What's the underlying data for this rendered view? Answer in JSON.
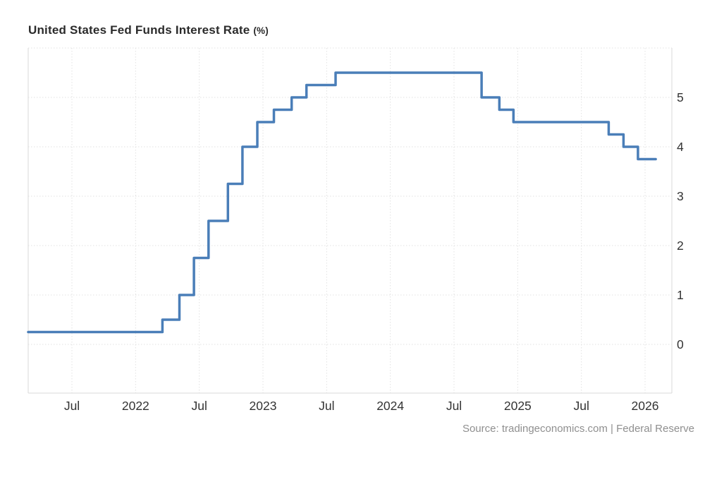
{
  "header": {
    "title_main": "United States Fed Funds Interest Rate",
    "title_unit": "(%)"
  },
  "footer": {
    "source": "Source: tradingeconomics.com | Federal Reserve"
  },
  "colors": {
    "line": "#4a7eb8",
    "grid": "#e2e2e2",
    "axis_border": "#d9d9d9",
    "title_text": "#2b2b2b",
    "tick_label": "#333333",
    "source_text": "#8f8f8f",
    "background": "#ffffff"
  },
  "chart_data": {
    "type": "line",
    "step": "after",
    "title": "United States Fed Funds Interest Rate (%)",
    "xlabel": "",
    "ylabel": "",
    "ylim": [
      -1,
      6
    ],
    "grid": "dotted",
    "legend": "none",
    "y_axis_side": "right",
    "y_ticks": [
      0,
      1,
      2,
      3,
      4,
      5
    ],
    "x_ticks": [
      {
        "label": "Jul",
        "m": 0
      },
      {
        "label": "2022",
        "m": 6
      },
      {
        "label": "Jul",
        "m": 12
      },
      {
        "label": "2023",
        "m": 18
      },
      {
        "label": "Jul",
        "m": 24
      },
      {
        "label": "2024",
        "m": 30
      },
      {
        "label": "Jul",
        "m": 36
      },
      {
        "label": "2025",
        "m": 42
      },
      {
        "label": "Jul",
        "m": 48
      },
      {
        "label": "2026",
        "m": 54
      }
    ],
    "x_unit": "months since 2021-07-01",
    "series": [
      {
        "name": "Fed Funds Interest Rate",
        "color": "#4a7eb8",
        "start": {
          "m": -4.1,
          "rate": 0.25
        },
        "steps": [
          {
            "date": "2022-03-17",
            "m": 8.53,
            "rate": 0.5
          },
          {
            "date": "2022-05-05",
            "m": 10.13,
            "rate": 1.0
          },
          {
            "date": "2022-06-16",
            "m": 11.5,
            "rate": 1.75
          },
          {
            "date": "2022-07-28",
            "m": 12.87,
            "rate": 2.5
          },
          {
            "date": "2022-09-22",
            "m": 14.7,
            "rate": 3.25
          },
          {
            "date": "2022-11-03",
            "m": 16.07,
            "rate": 4.0
          },
          {
            "date": "2022-12-15",
            "m": 17.47,
            "rate": 4.5
          },
          {
            "date": "2023-02-02",
            "m": 19.03,
            "rate": 4.75
          },
          {
            "date": "2023-03-23",
            "m": 20.7,
            "rate": 5.0
          },
          {
            "date": "2023-05-04",
            "m": 22.1,
            "rate": 5.25
          },
          {
            "date": "2023-07-27",
            "m": 24.84,
            "rate": 5.5
          },
          {
            "date": "2024-09-19",
            "m": 38.6,
            "rate": 5.0
          },
          {
            "date": "2024-11-08",
            "m": 40.27,
            "rate": 4.75
          },
          {
            "date": "2024-12-19",
            "m": 41.6,
            "rate": 4.5
          },
          {
            "date": "2025-09-18",
            "m": 50.57,
            "rate": 4.25
          },
          {
            "date": "2025-10-30",
            "m": 51.97,
            "rate": 4.0
          },
          {
            "date": "2025-12-11",
            "m": 53.33,
            "rate": 3.75
          }
        ],
        "end": {
          "m": 55.0,
          "rate": 3.75
        }
      }
    ]
  }
}
